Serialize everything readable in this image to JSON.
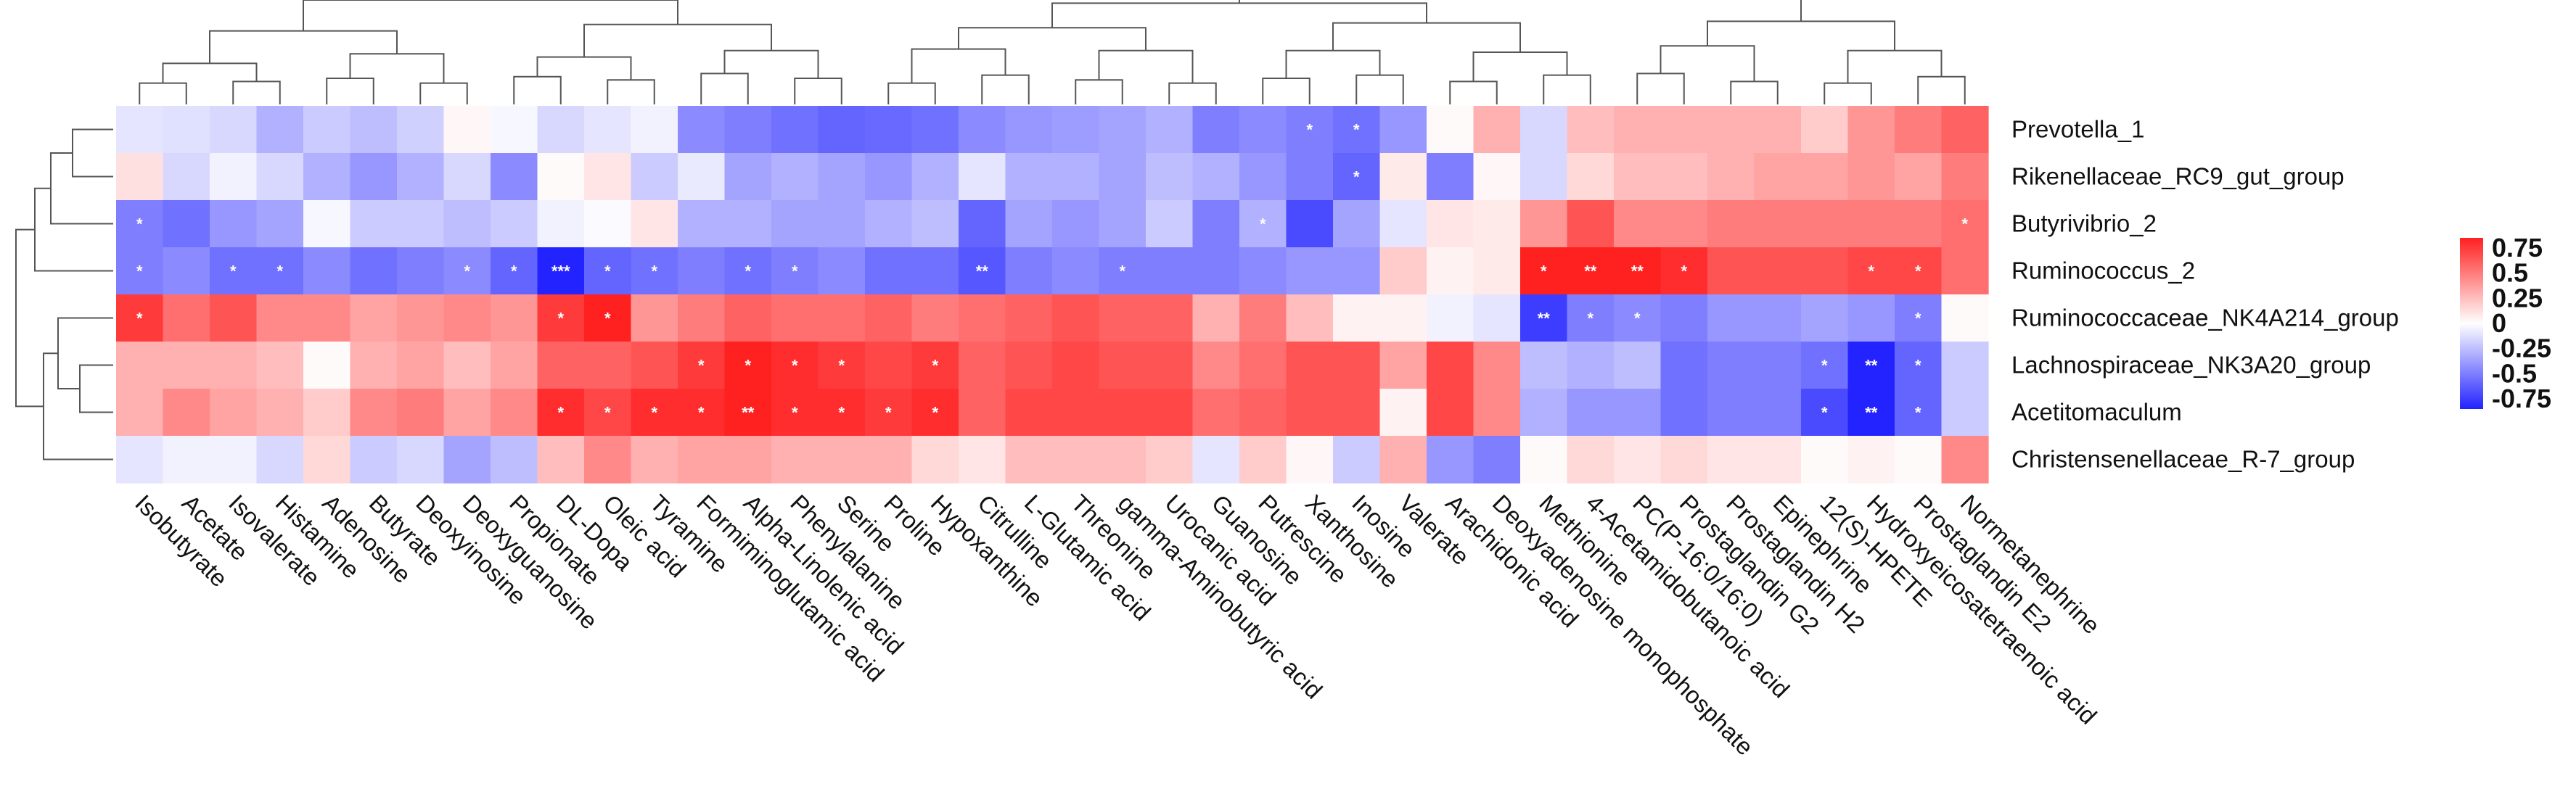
{
  "chart_data": {
    "type": "heatmap",
    "title": "",
    "xlabel": "",
    "ylabel": "",
    "colorscale": {
      "min": -0.85,
      "max": 0.85,
      "low": "#2323ff",
      "mid": "#ffffff",
      "high": "#ff2020"
    },
    "legend_ticks": [
      "0.75",
      "0.5",
      "0.25",
      "0",
      "-0.25",
      "-0.5",
      "-0.75"
    ],
    "legend_values": [
      0.75,
      0.5,
      0.25,
      0,
      -0.25,
      -0.5,
      -0.75
    ],
    "rows": [
      "Prevotella_1",
      "Rikenellaceae_RC9_gut_group",
      "Butyrivibrio_2",
      "Ruminococcus_2",
      "Ruminococcaceae_NK4A214_group",
      "Lachnospiraceae_NK3A20_group",
      "Acetitomaculum",
      "Christensenellaceae_R-7_group"
    ],
    "columns": [
      "Isobutyrate",
      "Acetate",
      "Isovalerate",
      "Histamine",
      "Adenosine",
      "Butyrate",
      "Deoxyinosine",
      "Deoxyguanosine",
      "Propionate",
      "DL-Dopa",
      "Oleic acid",
      "Tyramine",
      "Formiminoglutamic acid",
      "Alpha-Linolenic acid",
      "Phenylalanine",
      "Serine",
      "Proline",
      "Hypoxanthine",
      "Citrulline",
      "L-Glutamic acid",
      "Threonine",
      "gamma-Aminobutyric acid",
      "Urocanic acid",
      "Guanosine",
      "Putrescine",
      "Xanthosine",
      "Inosine",
      "Valerate",
      "Arachidonic acid",
      "Deoxyadenosine monophosphate",
      "Methionine",
      "4-Acetamidobutanoic acid",
      "PC(P-16:0/16:0)",
      "Prostaglandin G2",
      "Prostaglandin H2",
      "Epinephrine",
      "12(S)-HPETE",
      "Hydroxyeicosatetraenoic acid",
      "Prostaglandin E2",
      "Normetanephrine"
    ],
    "values": [
      [
        -0.1,
        -0.12,
        -0.15,
        -0.3,
        -0.2,
        -0.25,
        -0.18,
        0.03,
        -0.03,
        -0.15,
        -0.1,
        -0.05,
        -0.45,
        -0.5,
        -0.55,
        -0.6,
        -0.58,
        -0.55,
        -0.45,
        -0.4,
        -0.38,
        -0.35,
        -0.3,
        -0.5,
        -0.45,
        -0.5,
        -0.55,
        -0.4,
        0.02,
        0.3,
        -0.15,
        0.25,
        0.3,
        0.3,
        0.3,
        0.3,
        0.2,
        0.4,
        0.5,
        0.6
      ],
      [
        0.12,
        -0.15,
        -0.05,
        -0.15,
        -0.3,
        -0.4,
        -0.3,
        -0.15,
        -0.45,
        0.02,
        0.1,
        -0.2,
        -0.08,
        -0.35,
        -0.3,
        -0.35,
        -0.4,
        -0.3,
        -0.1,
        -0.3,
        -0.3,
        -0.35,
        -0.25,
        -0.3,
        -0.4,
        -0.5,
        -0.6,
        0.08,
        -0.5,
        0.03,
        -0.15,
        0.15,
        0.25,
        0.25,
        0.3,
        0.35,
        0.35,
        0.4,
        0.35,
        0.5
      ],
      [
        -0.5,
        -0.55,
        -0.4,
        -0.35,
        -0.03,
        -0.2,
        -0.2,
        -0.25,
        -0.2,
        -0.05,
        -0.02,
        0.1,
        -0.3,
        -0.3,
        -0.35,
        -0.35,
        -0.3,
        -0.25,
        -0.6,
        -0.35,
        -0.4,
        -0.35,
        -0.2,
        -0.5,
        -0.3,
        -0.7,
        -0.35,
        -0.1,
        0.1,
        0.08,
        0.4,
        0.65,
        0.45,
        0.45,
        0.5,
        0.5,
        0.5,
        0.5,
        0.5,
        0.55
      ],
      [
        -0.5,
        -0.45,
        -0.55,
        -0.55,
        -0.45,
        -0.55,
        -0.5,
        -0.45,
        -0.6,
        -0.95,
        -0.6,
        -0.55,
        -0.5,
        -0.55,
        -0.5,
        -0.45,
        -0.55,
        -0.55,
        -0.65,
        -0.5,
        -0.45,
        -0.5,
        -0.5,
        -0.5,
        -0.45,
        -0.4,
        -0.4,
        0.2,
        0.05,
        0.08,
        0.85,
        0.95,
        0.95,
        0.8,
        0.65,
        0.65,
        0.65,
        0.7,
        0.7,
        0.55
      ],
      [
        0.75,
        0.55,
        0.65,
        0.45,
        0.45,
        0.35,
        0.4,
        0.45,
        0.4,
        0.75,
        0.85,
        0.4,
        0.5,
        0.6,
        0.55,
        0.55,
        0.6,
        0.5,
        0.55,
        0.6,
        0.65,
        0.6,
        0.6,
        0.3,
        0.5,
        0.25,
        0.05,
        0.05,
        -0.05,
        -0.1,
        -0.75,
        -0.5,
        -0.45,
        -0.5,
        -0.4,
        -0.4,
        -0.35,
        -0.4,
        -0.5,
        0.02
      ],
      [
        0.3,
        0.3,
        0.3,
        0.25,
        0.02,
        0.3,
        0.35,
        0.25,
        0.35,
        0.6,
        0.6,
        0.65,
        0.75,
        0.85,
        0.8,
        0.75,
        0.7,
        0.75,
        0.6,
        0.65,
        0.7,
        0.65,
        0.65,
        0.45,
        0.55,
        0.65,
        0.65,
        0.35,
        0.7,
        0.45,
        -0.25,
        -0.3,
        -0.25,
        -0.55,
        -0.5,
        -0.5,
        -0.55,
        -0.9,
        -0.6,
        -0.2
      ],
      [
        0.3,
        0.45,
        0.35,
        0.3,
        0.2,
        0.45,
        0.5,
        0.35,
        0.45,
        0.8,
        0.7,
        0.8,
        0.8,
        0.9,
        0.8,
        0.8,
        0.75,
        0.8,
        0.6,
        0.7,
        0.7,
        0.7,
        0.7,
        0.55,
        0.6,
        0.65,
        0.65,
        0.05,
        0.7,
        0.45,
        -0.3,
        -0.4,
        -0.4,
        -0.55,
        -0.5,
        -0.5,
        -0.7,
        -0.9,
        -0.6,
        -0.2
      ],
      [
        -0.1,
        -0.05,
        -0.05,
        -0.15,
        0.15,
        -0.2,
        -0.15,
        -0.35,
        -0.25,
        0.25,
        0.45,
        0.3,
        0.35,
        0.35,
        0.3,
        0.3,
        0.3,
        0.15,
        0.1,
        0.25,
        0.25,
        0.25,
        0.2,
        -0.1,
        0.2,
        0.03,
        -0.2,
        0.3,
        -0.4,
        -0.5,
        0.02,
        0.15,
        0.1,
        0.15,
        0.1,
        0.1,
        0.02,
        0.05,
        0.02,
        0.45
      ]
    ],
    "significance": [
      [
        "",
        "",
        "",
        "",
        "",
        "",
        "",
        "",
        "",
        "",
        "",
        "",
        "",
        "",
        "",
        "",
        "",
        "",
        "",
        "",
        "",
        "",
        "",
        "",
        "",
        "*",
        "*",
        "",
        "",
        "",
        "",
        "",
        "",
        "",
        "",
        "",
        "",
        "",
        "",
        ""
      ],
      [
        "",
        "",
        "",
        "",
        "",
        "",
        "",
        "",
        "",
        "",
        "",
        "",
        "",
        "",
        "",
        "",
        "",
        "",
        "",
        "",
        "",
        "",
        "",
        "",
        "",
        "",
        "*",
        "",
        "",
        "",
        "",
        "",
        "",
        "",
        "",
        "",
        "",
        "",
        "",
        ""
      ],
      [
        "*",
        "",
        "",
        "",
        "",
        "",
        "",
        "",
        "",
        "",
        "",
        "",
        "",
        "",
        "",
        "",
        "",
        "",
        "",
        "",
        "",
        "",
        "",
        "",
        "*",
        "",
        "",
        "",
        "",
        "",
        "",
        "",
        "",
        "",
        "",
        "",
        "",
        "",
        "",
        "*"
      ],
      [
        "*",
        "",
        "*",
        "*",
        "",
        "",
        "",
        "*",
        "*",
        "***",
        "*",
        "*",
        "",
        "*",
        "*",
        "",
        "",
        "",
        "**",
        "",
        "",
        "*",
        "",
        "",
        "",
        "",
        "",
        "",
        "",
        "",
        "*",
        "**",
        "**",
        "*",
        "",
        "",
        "",
        "*",
        "*",
        ""
      ],
      [
        "*",
        "",
        "",
        "",
        "",
        "",
        "",
        "",
        "",
        "*",
        "*",
        "",
        "",
        "",
        "",
        "",
        "",
        "",
        "",
        "",
        "",
        "",
        "",
        "",
        "",
        "",
        "",
        "",
        "",
        "",
        "**",
        "*",
        "*",
        "",
        "",
        "",
        "",
        "",
        "*",
        ""
      ],
      [
        "",
        "",
        "",
        "",
        "",
        "",
        "",
        "",
        "",
        "",
        "",
        "",
        "*",
        "*",
        "*",
        "*",
        "",
        "*",
        "",
        "",
        "",
        "",
        "",
        "",
        "",
        "",
        "",
        "",
        "",
        "",
        "",
        "",
        "",
        "",
        "",
        "",
        "*",
        "**",
        "*",
        ""
      ],
      [
        "",
        "",
        "",
        "",
        "",
        "",
        "",
        "",
        "",
        "*",
        "*",
        "*",
        "*",
        "**",
        "*",
        "*",
        "*",
        "*",
        "",
        "",
        "",
        "",
        "",
        "",
        "",
        "",
        "",
        "",
        "",
        "",
        "",
        "",
        "",
        "",
        "",
        "",
        "*",
        "**",
        "*",
        ""
      ],
      [
        "",
        "",
        "",
        "",
        "",
        "",
        "",
        "",
        "",
        "",
        "",
        "",
        "",
        "",
        "",
        "",
        "",
        "",
        "",
        "",
        "",
        "",
        "",
        "",
        "",
        "",
        "",
        "",
        "",
        "",
        "",
        "",
        "",
        "",
        "",
        "",
        "",
        "",
        "",
        ""
      ]
    ]
  }
}
